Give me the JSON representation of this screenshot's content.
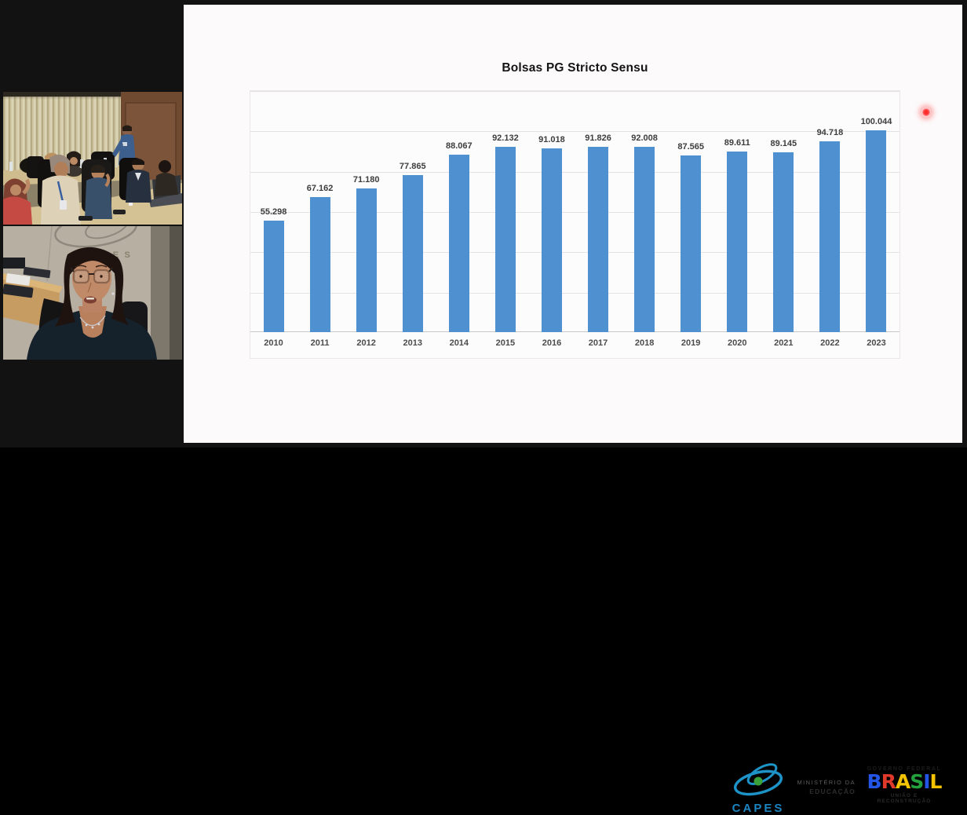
{
  "window": {
    "background": "#121212"
  },
  "video_feeds": [
    {
      "id": "meeting-room"
    },
    {
      "id": "presenter"
    }
  ],
  "chart_data": {
    "type": "bar",
    "title": "Bolsas PG Stricto Sensu",
    "categories": [
      "2010",
      "2011",
      "2012",
      "2013",
      "2014",
      "2015",
      "2016",
      "2017",
      "2018",
      "2019",
      "2020",
      "2021",
      "2022",
      "2023"
    ],
    "values": [
      55298,
      67162,
      71180,
      77865,
      88067,
      92132,
      91018,
      91826,
      92008,
      87565,
      89611,
      89145,
      94718,
      100044
    ],
    "labels": [
      "55.298",
      "67.162",
      "71.180",
      "77.865",
      "88.067",
      "92.132",
      "91.018",
      "91.826",
      "92.008",
      "87.565",
      "89.611",
      "89.145",
      "94.718",
      "100.044"
    ],
    "bar_color": "#4f90d0",
    "xlabel": "",
    "ylabel": "",
    "ylim": [
      0,
      120000
    ],
    "grid_step": 20000,
    "grid": true,
    "legend": false,
    "y_axis_labels_visible": false
  },
  "footer": {
    "capes_word": "CAPES",
    "capes_blue": "#1e93c8",
    "capes_green": "#3aa23a",
    "ministry_line1": "MINISTÉRIO DA",
    "ministry_line2": "EDUCAÇÃO",
    "gov_top": "GOVERNO FEDERAL",
    "gov_brand_letters": [
      {
        "ch": "B",
        "color": "#2456e6"
      },
      {
        "ch": "R",
        "color": "#e23a2a"
      },
      {
        "ch": "A",
        "color": "#f3c200"
      },
      {
        "ch": "S",
        "color": "#23a13f"
      },
      {
        "ch": "I",
        "color": "#2456e6"
      },
      {
        "ch": "L",
        "color": "#f3c200"
      }
    ],
    "gov_bottom": "UNIÃO E RECONSTRUÇÃO"
  },
  "pointer": {
    "color": "#ff2020"
  }
}
